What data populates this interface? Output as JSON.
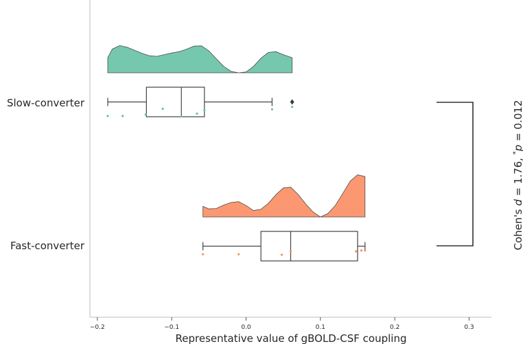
{
  "chart_data": {
    "type": "raincloud",
    "orientation": "horizontal",
    "xlabel": "Representative value of gBOLD-CSF coupling",
    "ylabel": "",
    "xlim": [
      -0.21,
      0.33
    ],
    "xticks": [
      -0.2,
      -0.1,
      0.0,
      0.1,
      0.2,
      0.3
    ],
    "xtick_labels": [
      "−0.2",
      "−0.1",
      "0.0",
      "0.1",
      "0.2",
      "0.3"
    ],
    "grid": false,
    "categories": [
      "Slow-converter",
      "Fast-converter"
    ],
    "series": [
      {
        "name": "Slow-converter",
        "color": "#66c2a5",
        "box": {
          "whisker_low": -0.186,
          "q1": -0.134,
          "median": -0.087,
          "q3": -0.056,
          "whisker_high": 0.035
        },
        "outliers": [
          0.062
        ],
        "points": [
          {
            "x": -0.186,
            "jitter": 0.3
          },
          {
            "x": -0.166,
            "jitter": 0.3
          },
          {
            "x": -0.135,
            "jitter": 0.27
          },
          {
            "x": -0.112,
            "jitter": 0.15
          },
          {
            "x": -0.087,
            "jitter": 0.31
          },
          {
            "x": -0.066,
            "jitter": 0.25
          },
          {
            "x": -0.056,
            "jitter": 0.18
          },
          {
            "x": 0.035,
            "jitter": 0.16
          },
          {
            "x": 0.062,
            "jitter": 0.11
          }
        ],
        "density": {
          "x": [
            -0.186,
            -0.18,
            -0.17,
            -0.16,
            -0.15,
            -0.14,
            -0.13,
            -0.12,
            -0.11,
            -0.1,
            -0.09,
            -0.08,
            -0.07,
            -0.06,
            -0.05,
            -0.04,
            -0.03,
            -0.02,
            -0.01,
            0.0,
            0.01,
            0.02,
            0.03,
            0.04,
            0.05,
            0.062
          ],
          "y": [
            0.55,
            0.86,
            0.99,
            0.93,
            0.82,
            0.71,
            0.62,
            0.6,
            0.66,
            0.72,
            0.77,
            0.86,
            0.97,
            0.98,
            0.8,
            0.51,
            0.23,
            0.05,
            0.0,
            0.03,
            0.23,
            0.53,
            0.74,
            0.77,
            0.66,
            0.55
          ]
        }
      },
      {
        "name": "Fast-converter",
        "color": "#fc8d62",
        "box": {
          "whisker_low": -0.058,
          "q1": 0.02,
          "median": 0.06,
          "q3": 0.15,
          "whisker_high": 0.16
        },
        "outliers": [],
        "points": [
          {
            "x": -0.058,
            "jitter": 0.19
          },
          {
            "x": -0.01,
            "jitter": 0.19
          },
          {
            "x": 0.048,
            "jitter": 0.2
          },
          {
            "x": 0.06,
            "jitter": 0.13
          },
          {
            "x": 0.148,
            "jitter": 0.13
          },
          {
            "x": 0.155,
            "jitter": 0.11
          },
          {
            "x": 0.16,
            "jitter": 0.11
          }
        ],
        "density": {
          "x": [
            -0.058,
            -0.05,
            -0.04,
            -0.03,
            -0.02,
            -0.01,
            0.0,
            0.01,
            0.02,
            0.03,
            0.04,
            0.05,
            0.06,
            0.07,
            0.08,
            0.09,
            0.1,
            0.11,
            0.12,
            0.13,
            0.14,
            0.15,
            0.16
          ],
          "y": [
            0.25,
            0.19,
            0.2,
            0.28,
            0.34,
            0.36,
            0.27,
            0.15,
            0.18,
            0.32,
            0.52,
            0.68,
            0.7,
            0.53,
            0.31,
            0.12,
            0.0,
            0.08,
            0.27,
            0.55,
            0.84,
            0.99,
            0.95
          ]
        }
      }
    ],
    "annotation": {
      "text_prefix": "Cohen's ",
      "d_symbol": "d",
      "d_text": " = 1.76, ",
      "star": "*",
      "p_symbol": "p",
      "p_text": " = 0.012"
    }
  }
}
